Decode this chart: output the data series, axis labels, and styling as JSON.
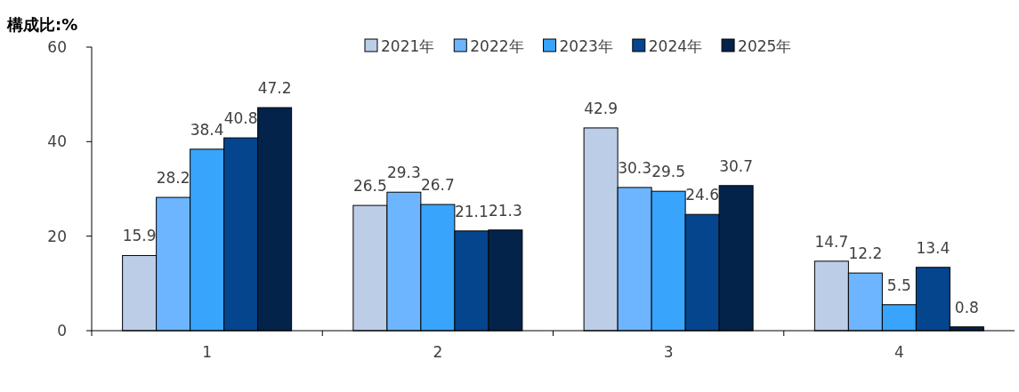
{
  "chart_data": {
    "type": "bar",
    "ylabel": "構成比:%",
    "categories": [
      "1",
      "2",
      "3",
      "4"
    ],
    "series": [
      {
        "name": "2021年",
        "color": "#bccde8",
        "values": [
          15.9,
          26.5,
          42.9,
          14.7
        ]
      },
      {
        "name": "2022年",
        "color": "#6db5ff",
        "values": [
          28.2,
          29.3,
          30.3,
          12.2
        ]
      },
      {
        "name": "2023年",
        "color": "#38a4fb",
        "values": [
          38.4,
          26.7,
          29.5,
          5.5
        ]
      },
      {
        "name": "2024年",
        "color": "#04458e",
        "values": [
          40.8,
          21.1,
          24.6,
          13.4
        ]
      },
      {
        "name": "2025年",
        "color": "#03234a",
        "values": [
          47.2,
          21.3,
          30.7,
          0.8
        ]
      }
    ],
    "ylim": [
      0,
      60
    ],
    "yticks": [
      0,
      20,
      40,
      60
    ],
    "data_labels": true,
    "legend": "top",
    "grid": false
  }
}
